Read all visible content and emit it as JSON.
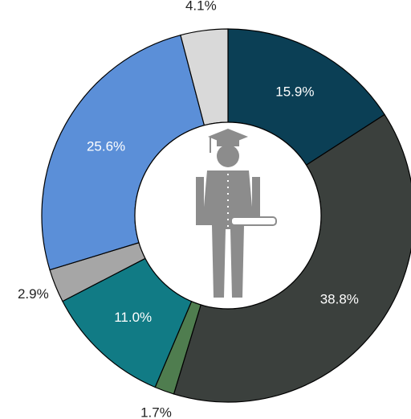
{
  "chart_data": {
    "type": "donut",
    "categories": [
      null,
      null,
      null,
      null,
      null,
      null,
      null
    ],
    "values": [
      15.9,
      38.8,
      1.7,
      11.0,
      2.9,
      25.6,
      4.1
    ],
    "value_labels": [
      "15.9%",
      "38.8%",
      "1.7%",
      "11.0%",
      "2.9%",
      "25.6%",
      "4.1%"
    ],
    "colors": [
      "#0b3f55",
      "#3b403d",
      "#4f7d4f",
      "#117b85",
      "#a6a6a6",
      "#5b8fd8",
      "#d9d9d9"
    ]
  }
}
